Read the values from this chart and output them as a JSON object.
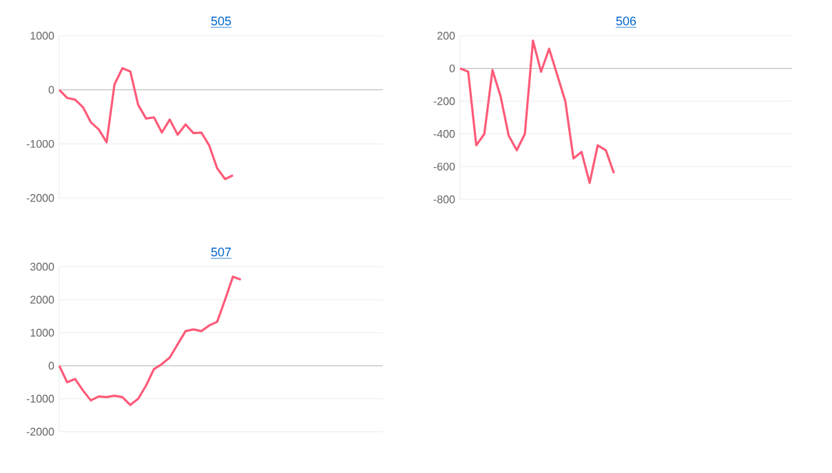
{
  "chart_data": [
    {
      "type": "line",
      "title": "505",
      "categories": [
        null,
        null,
        null,
        null,
        null,
        null,
        null,
        null,
        null,
        null,
        null,
        null,
        null,
        null,
        null,
        null,
        null,
        null,
        null,
        null,
        null,
        null,
        null,
        null,
        null,
        null,
        null,
        null,
        null,
        null,
        null,
        null,
        null,
        null,
        null,
        null,
        null,
        null,
        null,
        null,
        null,
        null
      ],
      "values": [
        0,
        -150,
        -180,
        -320,
        -600,
        -730,
        -970,
        100,
        400,
        340,
        -280,
        -530,
        -510,
        -790,
        -550,
        -830,
        -640,
        -800,
        -790,
        -1030,
        -1450,
        -1650,
        -1580,
        null,
        null,
        null,
        null,
        null,
        null,
        null,
        null,
        null,
        null,
        null,
        null,
        null,
        null,
        null,
        null,
        null,
        null,
        null
      ],
      "color": "#ff5a78",
      "ylim": [
        -2000,
        1000
      ],
      "yticks": [
        -2000,
        -1000,
        0,
        1000
      ],
      "grid": "y",
      "tick_labels": "y",
      "marker": "none"
    },
    {
      "type": "line",
      "title": "506",
      "categories": [
        null,
        null,
        null,
        null,
        null,
        null,
        null,
        null,
        null,
        null,
        null,
        null,
        null,
        null,
        null,
        null,
        null,
        null,
        null,
        null,
        null,
        null,
        null,
        null,
        null,
        null,
        null,
        null,
        null,
        null,
        null,
        null,
        null,
        null,
        null,
        null,
        null,
        null,
        null,
        null,
        null,
        null
      ],
      "values": [
        0,
        -20,
        -470,
        -400,
        -10,
        -170,
        -410,
        -500,
        -400,
        170,
        -20,
        120,
        -40,
        -200,
        -550,
        -510,
        -700,
        -470,
        -500,
        -640,
        null,
        null,
        null,
        null,
        null,
        null,
        null,
        null,
        null,
        null,
        null,
        null,
        null,
        null,
        null,
        null,
        null,
        null,
        null,
        null,
        null,
        null
      ],
      "color": "#ff5a78",
      "ylim": [
        -800,
        200
      ],
      "yticks": [
        -800,
        -600,
        -400,
        -200,
        0,
        200
      ],
      "grid": "y",
      "tick_labels": "y",
      "marker": "none"
    },
    {
      "type": "line",
      "title": "507",
      "categories": [
        null,
        null,
        null,
        null,
        null,
        null,
        null,
        null,
        null,
        null,
        null,
        null,
        null,
        null,
        null,
        null,
        null,
        null,
        null,
        null,
        null,
        null,
        null,
        null,
        null,
        null,
        null,
        null,
        null,
        null,
        null,
        null,
        null,
        null,
        null,
        null,
        null,
        null,
        null,
        null,
        null,
        null
      ],
      "values": [
        0,
        -500,
        -400,
        -750,
        -1050,
        -930,
        -950,
        -910,
        -950,
        -1190,
        -1000,
        -600,
        -100,
        50,
        250,
        650,
        1050,
        1100,
        1050,
        1220,
        1330,
        2000,
        2700,
        2610,
        null,
        null,
        null,
        null,
        null,
        null,
        null,
        null,
        null,
        null,
        null,
        null,
        null,
        null,
        null,
        null,
        null,
        null
      ],
      "color": "#ff5a78",
      "ylim": [
        -2000,
        3000
      ],
      "yticks": [
        -2000,
        -1000,
        0,
        1000,
        2000,
        3000
      ],
      "grid": "y",
      "tick_labels": "y",
      "marker": "none"
    }
  ]
}
